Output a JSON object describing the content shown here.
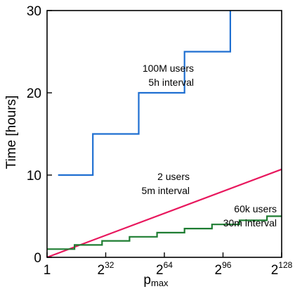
{
  "chart_data": {
    "type": "line",
    "xlabel": "p",
    "xlabel_sub": "max",
    "ylabel": "Time [hours]",
    "x_scale": "log2",
    "xlim_log2": [
      0,
      128
    ],
    "ylim": [
      0,
      30
    ],
    "x_ticks": [
      {
        "base": "1",
        "exp": ""
      },
      {
        "base": "2",
        "exp": "32"
      },
      {
        "base": "2",
        "exp": "64"
      },
      {
        "base": "2",
        "exp": "96"
      },
      {
        "base": "2",
        "exp": "128"
      }
    ],
    "y_ticks": [
      "0",
      "10",
      "20",
      "30"
    ],
    "grid": false,
    "series": [
      {
        "key": "s100m",
        "color": "#1f6fd1",
        "shape": "step",
        "points": [
          [
            6,
            10
          ],
          [
            25,
            10
          ],
          [
            25,
            15
          ],
          [
            50,
            15
          ],
          [
            50,
            20
          ],
          [
            75,
            20
          ],
          [
            75,
            25
          ],
          [
            100,
            25
          ],
          [
            100,
            30
          ]
        ],
        "label_lines": [
          "100M users",
          "5h interval"
        ]
      },
      {
        "key": "s2",
        "color": "#e8175d",
        "shape": "line",
        "points": [
          [
            0,
            0
          ],
          [
            128,
            10.7
          ]
        ],
        "label_lines": [
          "2 users",
          "5m interval"
        ]
      },
      {
        "key": "s60k",
        "color": "#1e7d32",
        "shape": "step",
        "points": [
          [
            0,
            1
          ],
          [
            15,
            1
          ],
          [
            15,
            1.5
          ],
          [
            30,
            1.5
          ],
          [
            30,
            2
          ],
          [
            45,
            2
          ],
          [
            45,
            2.5
          ],
          [
            60,
            2.5
          ],
          [
            60,
            3
          ],
          [
            75,
            3
          ],
          [
            75,
            3.5
          ],
          [
            90,
            3.5
          ],
          [
            90,
            4
          ],
          [
            105,
            4
          ],
          [
            105,
            4.5
          ],
          [
            120,
            4.5
          ],
          [
            120,
            5
          ],
          [
            128,
            5
          ]
        ],
        "label_lines": [
          "60k users",
          "30m interval"
        ]
      }
    ]
  }
}
